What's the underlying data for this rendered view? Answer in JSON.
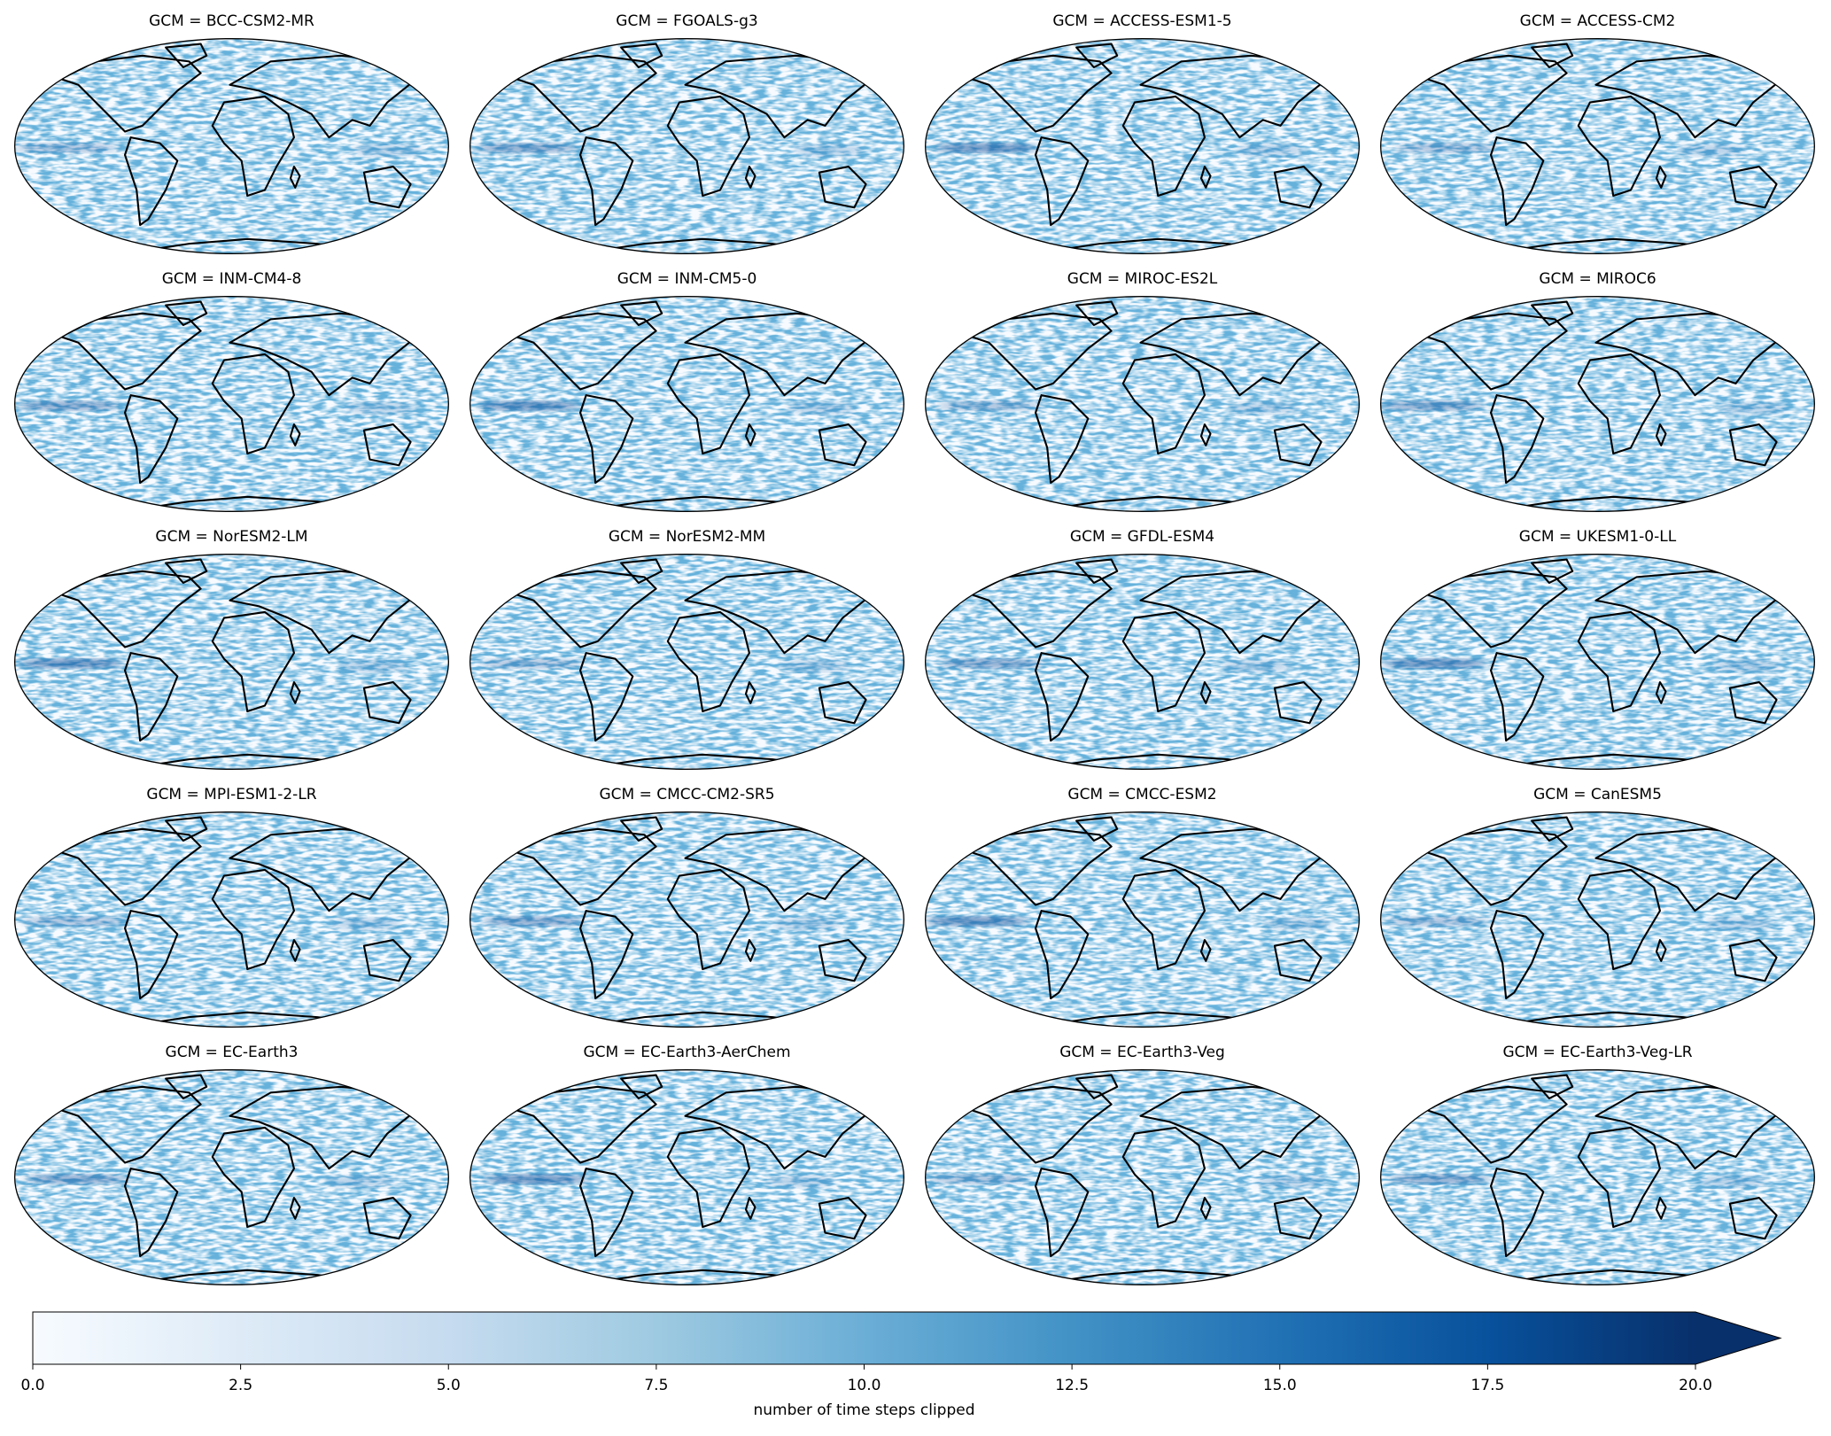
{
  "panels": [
    {
      "title": "GCM = BCC-CSM2-MR"
    },
    {
      "title": "GCM = FGOALS-g3"
    },
    {
      "title": "GCM = ACCESS-ESM1-5"
    },
    {
      "title": "GCM = ACCESS-CM2"
    },
    {
      "title": "GCM = INM-CM4-8"
    },
    {
      "title": "GCM = INM-CM5-0"
    },
    {
      "title": "GCM = MIROC-ES2L"
    },
    {
      "title": "GCM = MIROC6"
    },
    {
      "title": "GCM = NorESM2-LM"
    },
    {
      "title": "GCM = NorESM2-MM"
    },
    {
      "title": "GCM = GFDL-ESM4"
    },
    {
      "title": "GCM = UKESM1-0-LL"
    },
    {
      "title": "GCM = MPI-ESM1-2-LR"
    },
    {
      "title": "GCM = CMCC-CM2-SR5"
    },
    {
      "title": "GCM = CMCC-ESM2"
    },
    {
      "title": "GCM = CanESM5"
    },
    {
      "title": "GCM = EC-Earth3"
    },
    {
      "title": "GCM = EC-Earth3-AerChem"
    },
    {
      "title": "GCM = EC-Earth3-Veg"
    },
    {
      "title": "GCM = EC-Earth3-Veg-LR"
    }
  ],
  "colorbar": {
    "label": "number of time steps clipped",
    "lim": [
      0,
      20
    ],
    "extend": "max",
    "ticks": [
      {
        "value": 0,
        "label": "0.0"
      },
      {
        "value": 2.5,
        "label": "2.5"
      },
      {
        "value": 5,
        "label": "5.0"
      },
      {
        "value": 7.5,
        "label": "7.5"
      },
      {
        "value": 10,
        "label": "10.0"
      },
      {
        "value": 12.5,
        "label": "12.5"
      },
      {
        "value": 15,
        "label": "15.0"
      },
      {
        "value": 17.5,
        "label": "17.5"
      },
      {
        "value": 20,
        "label": "20.0"
      }
    ]
  }
}
